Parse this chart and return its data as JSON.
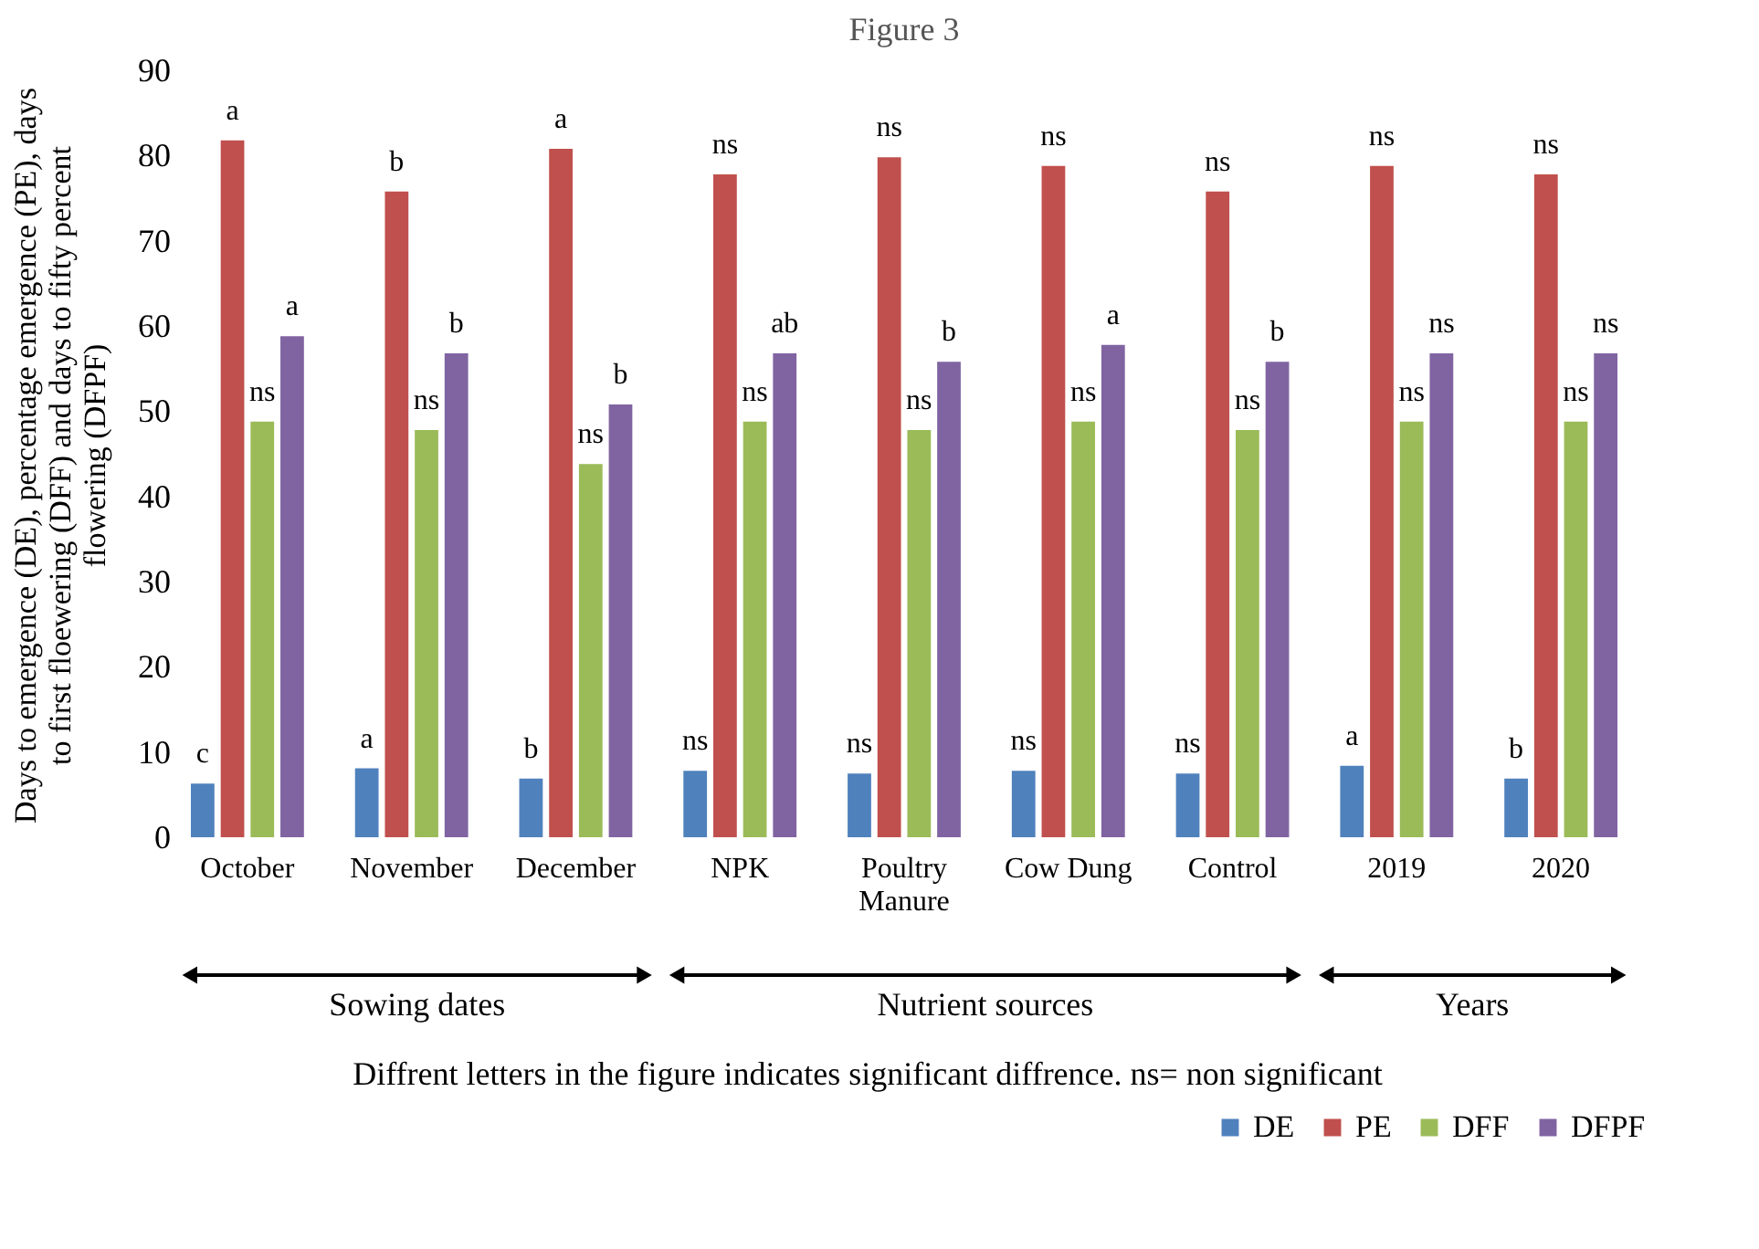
{
  "chart_data": {
    "type": "bar",
    "title": "Figure 3",
    "ylabel": "Days to emergence (DE), percentage emergence (PE), days to first floewering (DFF) and days to fifty percent flowering (DFPF)",
    "categories": [
      "October",
      "November",
      "December",
      "NPK",
      "Poultry Manure",
      "Cow Dung",
      "Control",
      "2019",
      "2020"
    ],
    "series": [
      {
        "name": "DE",
        "color": "#4f81bd",
        "values": [
          6.5,
          8.3,
          7.1,
          8,
          7.7,
          8,
          7.7,
          8.6,
          7.1
        ],
        "value_labels": [
          "c",
          "a",
          "b",
          "ns",
          "ns",
          "ns",
          "ns",
          "a",
          "b"
        ]
      },
      {
        "name": "PE",
        "color": "#c0504d",
        "values": [
          82,
          76,
          81,
          78,
          80,
          79,
          76,
          79,
          78
        ],
        "value_labels": [
          "a",
          "b",
          "a",
          "ns",
          "ns",
          "ns",
          "ns",
          "ns",
          "ns"
        ]
      },
      {
        "name": "DFF",
        "color": "#9bbb59",
        "values": [
          49,
          48,
          44,
          49,
          48,
          49,
          48,
          49,
          49
        ],
        "value_labels": [
          "ns",
          "ns",
          "ns",
          "ns",
          "ns",
          "ns",
          "ns",
          "ns",
          "ns"
        ]
      },
      {
        "name": "DFPF",
        "color": "#8064a2",
        "values": [
          59,
          57,
          51,
          57,
          56,
          58,
          56,
          57,
          57
        ],
        "value_labels": [
          "a",
          "b",
          "b",
          "ab",
          "b",
          "a",
          "b",
          "ns",
          "ns"
        ]
      }
    ],
    "ylim": [
      0,
      90
    ],
    "yticks": [
      0,
      10,
      20,
      30,
      40,
      50,
      60,
      70,
      80,
      90
    ],
    "grid": false,
    "legend": "bottom right",
    "annotations": [
      "Sowing dates",
      "Nutrient sources",
      "Years",
      "Diffrent letters in the figure indicates significant diffrence. ns= non significant"
    ]
  }
}
